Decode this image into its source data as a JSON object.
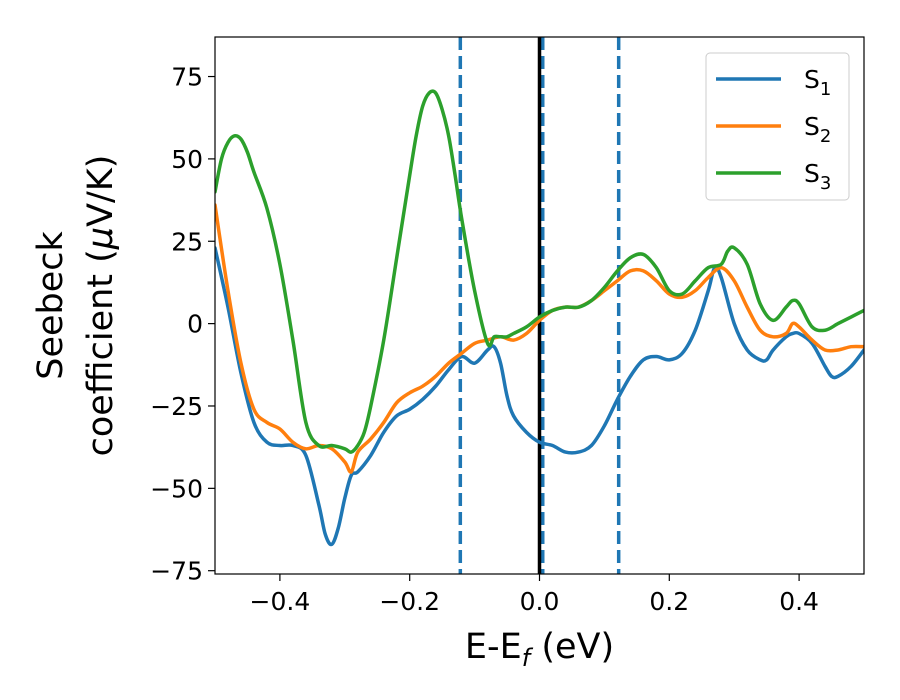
{
  "chart_data": {
    "type": "line",
    "xlabel": {
      "main": "E-E",
      "sub": "f",
      "suffix": " (eV)"
    },
    "ylabel": {
      "line1": "Seebeck",
      "line2_pre": "coefficient  (",
      "line2_mu": "μ",
      "line2_post": "V/K)"
    },
    "xlim": [
      -0.5,
      0.5
    ],
    "ylim": [
      -76,
      87
    ],
    "xticks": [
      {
        "value": -0.4,
        "label": "−0.4"
      },
      {
        "value": -0.2,
        "label": "−0.2"
      },
      {
        "value": 0.0,
        "label": "0.0"
      },
      {
        "value": 0.2,
        "label": "0.2"
      },
      {
        "value": 0.4,
        "label": "0.4"
      }
    ],
    "yticks": [
      {
        "value": -75,
        "label": "−75"
      },
      {
        "value": -50,
        "label": "−50"
      },
      {
        "value": -25,
        "label": "−25"
      },
      {
        "value": 0,
        "label": "0"
      },
      {
        "value": 25,
        "label": "25"
      },
      {
        "value": 50,
        "label": "50"
      },
      {
        "value": 75,
        "label": "75"
      }
    ],
    "vlines": [
      {
        "x": -0.122,
        "style": "dashed",
        "color": "#1f77b4"
      },
      {
        "x": 0.005,
        "style": "dashed",
        "color": "#1f77b4"
      },
      {
        "x": 0.122,
        "style": "dashed",
        "color": "#1f77b4"
      },
      {
        "x": 0.0,
        "style": "solid",
        "color": "#000000"
      }
    ],
    "legend_position": "top-right",
    "grid": false,
    "series": [
      {
        "name": "S",
        "sub": "1",
        "color": "#1f77b4",
        "x": [
          -0.5,
          -0.48,
          -0.46,
          -0.44,
          -0.42,
          -0.4,
          -0.38,
          -0.36,
          -0.34,
          -0.33,
          -0.32,
          -0.31,
          -0.3,
          -0.29,
          -0.28,
          -0.26,
          -0.24,
          -0.22,
          -0.2,
          -0.18,
          -0.16,
          -0.14,
          -0.12,
          -0.1,
          -0.08,
          -0.07,
          -0.06,
          -0.05,
          -0.04,
          -0.02,
          0.0,
          0.02,
          0.04,
          0.06,
          0.08,
          0.1,
          0.12,
          0.14,
          0.16,
          0.18,
          0.2,
          0.22,
          0.24,
          0.26,
          0.27,
          0.28,
          0.3,
          0.32,
          0.34,
          0.35,
          0.36,
          0.38,
          0.39,
          0.4,
          0.42,
          0.44,
          0.45,
          0.46,
          0.48,
          0.5
        ],
        "y": [
          23,
          5,
          -15,
          -30,
          -36,
          -37,
          -37,
          -40,
          -55,
          -64,
          -67,
          -62,
          -53,
          -46,
          -45,
          -40,
          -33,
          -28,
          -26,
          -23,
          -19,
          -14,
          -10,
          -12,
          -8,
          -7,
          -12,
          -22,
          -28,
          -33,
          -36,
          -37,
          -39,
          -39,
          -37,
          -31,
          -23,
          -16,
          -11,
          -10,
          -11,
          -9,
          -2,
          10,
          17,
          14,
          0,
          -8,
          -11,
          -11,
          -8,
          -4,
          -3,
          -3,
          -6,
          -13,
          -16,
          -16,
          -13,
          -8
        ]
      },
      {
        "name": "S",
        "sub": "2",
        "color": "#ff7f0e",
        "x": [
          -0.5,
          -0.48,
          -0.46,
          -0.44,
          -0.42,
          -0.4,
          -0.38,
          -0.36,
          -0.34,
          -0.32,
          -0.3,
          -0.29,
          -0.28,
          -0.26,
          -0.24,
          -0.22,
          -0.2,
          -0.18,
          -0.16,
          -0.14,
          -0.12,
          -0.1,
          -0.08,
          -0.06,
          -0.04,
          -0.02,
          0.0,
          0.02,
          0.04,
          0.06,
          0.08,
          0.1,
          0.12,
          0.14,
          0.16,
          0.18,
          0.2,
          0.22,
          0.24,
          0.26,
          0.28,
          0.3,
          0.32,
          0.34,
          0.36,
          0.38,
          0.39,
          0.4,
          0.42,
          0.44,
          0.46,
          0.48,
          0.5
        ],
        "y": [
          36,
          10,
          -12,
          -26,
          -30,
          -32,
          -36,
          -38,
          -37,
          -38,
          -42,
          -45,
          -39,
          -35,
          -30,
          -24,
          -21,
          -19,
          -16,
          -12,
          -9,
          -6,
          -5,
          -4,
          -5,
          -3,
          1,
          4,
          5,
          5,
          7,
          10,
          13,
          16,
          16,
          13,
          9,
          8,
          10,
          14,
          17,
          13,
          5,
          -2,
          -4,
          -3,
          0,
          -1,
          -5,
          -8,
          -8,
          -7,
          -7
        ]
      },
      {
        "name": "S",
        "sub": "3",
        "color": "#2ca02c",
        "x": [
          -0.5,
          -0.49,
          -0.48,
          -0.47,
          -0.46,
          -0.45,
          -0.44,
          -0.42,
          -0.4,
          -0.38,
          -0.36,
          -0.34,
          -0.32,
          -0.3,
          -0.29,
          -0.28,
          -0.27,
          -0.26,
          -0.24,
          -0.22,
          -0.2,
          -0.19,
          -0.18,
          -0.17,
          -0.16,
          -0.15,
          -0.14,
          -0.13,
          -0.12,
          -0.1,
          -0.08,
          -0.07,
          -0.06,
          -0.05,
          -0.04,
          -0.02,
          0.0,
          0.02,
          0.04,
          0.06,
          0.08,
          0.1,
          0.12,
          0.14,
          0.16,
          0.18,
          0.2,
          0.22,
          0.24,
          0.26,
          0.28,
          0.29,
          0.3,
          0.32,
          0.34,
          0.36,
          0.38,
          0.39,
          0.4,
          0.42,
          0.44,
          0.46,
          0.48,
          0.5
        ],
        "y": [
          40,
          50,
          55,
          57,
          56,
          52,
          46,
          35,
          18,
          -5,
          -30,
          -37,
          -37,
          -38,
          -39,
          -37,
          -33,
          -25,
          -5,
          20,
          45,
          57,
          66,
          70,
          70,
          65,
          57,
          45,
          32,
          10,
          -6,
          -4,
          -4,
          -4,
          -3,
          -1,
          2,
          4,
          5,
          5,
          7,
          11,
          16,
          20,
          21,
          17,
          10,
          9,
          13,
          17,
          18,
          22,
          23,
          18,
          6,
          1,
          5,
          7,
          6,
          -1,
          -2,
          0,
          2,
          4
        ]
      }
    ]
  }
}
